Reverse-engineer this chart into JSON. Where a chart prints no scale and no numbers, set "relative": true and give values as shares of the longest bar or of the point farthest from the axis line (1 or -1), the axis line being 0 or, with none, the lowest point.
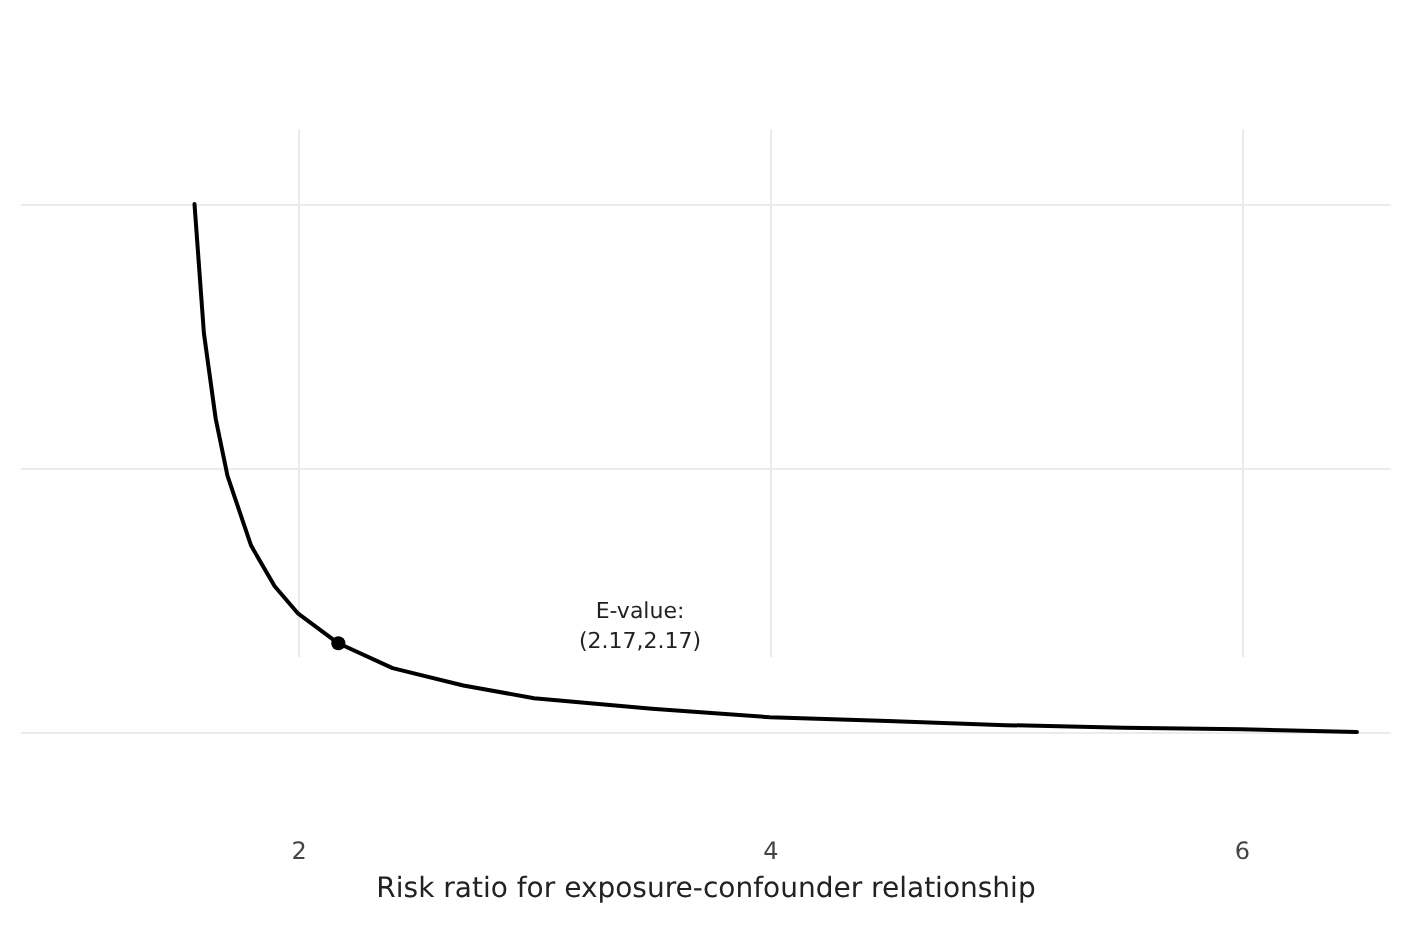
{
  "chart_data": {
    "type": "line",
    "xlabel": "Risk ratio for exposure-confounder relationship",
    "xlim": [
      0.82,
      6.63
    ],
    "xticks": [
      2,
      4,
      6
    ],
    "relative": true,
    "grid": true,
    "series": [
      {
        "color": "#000000",
        "x": [
          1.56,
          1.6,
          1.65,
          1.7,
          1.8,
          1.9,
          2.0,
          2.17,
          2.4,
          2.7,
          3.0,
          3.5,
          4.0,
          4.5,
          5.0,
          5.5,
          6.0,
          6.49
        ],
        "values": [
          1,
          0.755,
          0.593,
          0.485,
          0.353,
          0.276,
          0.224,
          0.168,
          0.121,
          0.088,
          0.064,
          0.044,
          0.028,
          0.021,
          0.013,
          0.008,
          0.005,
          0
        ]
      },
      {
        "type": "scatter",
        "color": "#000000",
        "marker": "circle",
        "x": [
          2.17
        ],
        "values": [
          0.168
        ]
      }
    ],
    "annotations": [
      "E-value:\n(2.17,2.17)"
    ]
  }
}
